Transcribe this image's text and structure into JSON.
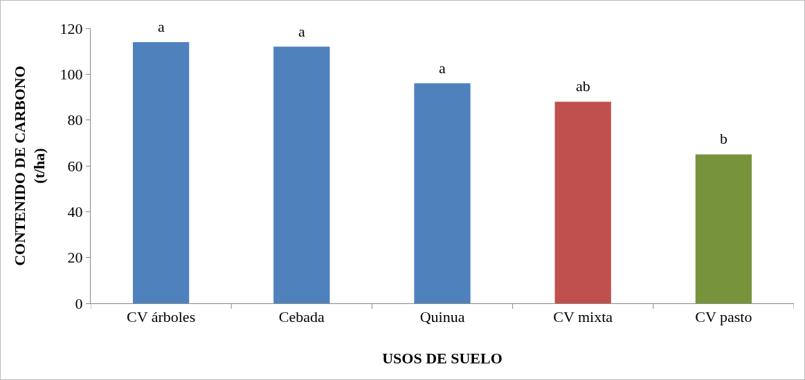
{
  "chart_data": {
    "type": "bar",
    "xlabel": "USOS DE SUELO",
    "ylabel": "CONTENIDO DE CARBONO\n(t/ha)",
    "categories": [
      "CV árboles",
      "Cebada",
      "Quinua",
      "CV mixta",
      "CV pasto"
    ],
    "values": [
      114,
      112,
      96,
      88,
      65
    ],
    "colors": [
      "#4f81bd",
      "#4f81bd",
      "#4f81bd",
      "#c0504d",
      "#77933c"
    ],
    "ylim": [
      0,
      120
    ],
    "yticks": [
      0,
      20,
      40,
      60,
      80,
      100,
      120
    ],
    "grid": false,
    "annotations": [
      {
        "text": "a",
        "x": "CV árboles",
        "y": 114
      },
      {
        "text": "a",
        "x": "Cebada",
        "y": 112
      },
      {
        "text": "a",
        "x": "Quinua",
        "y": 96
      },
      {
        "text": "ab",
        "x": "CV mixta",
        "y": 88
      },
      {
        "text": "b",
        "x": "CV pasto",
        "y": 65
      }
    ]
  }
}
